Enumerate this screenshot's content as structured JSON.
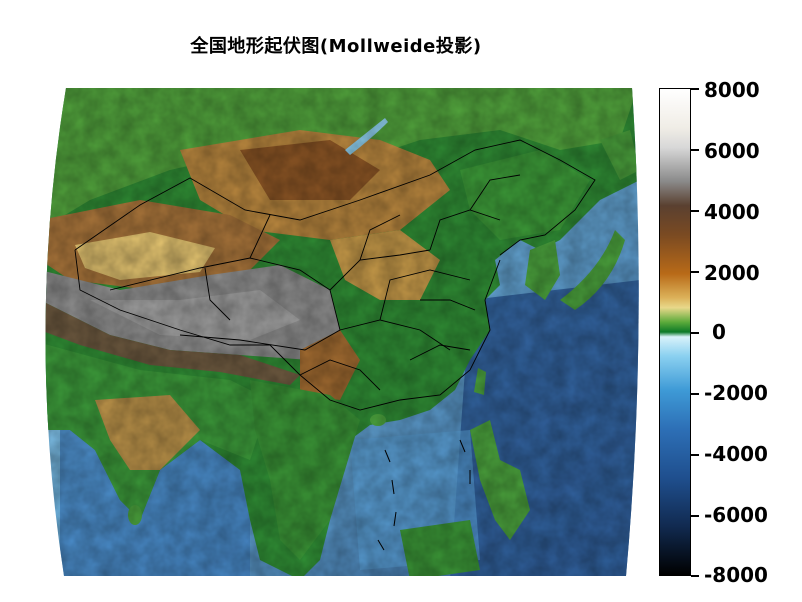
{
  "title": "全国地形起伏图(Mollweide投影)",
  "colorbar": {
    "ticks": [
      "8000",
      "6000",
      "4000",
      "2000",
      "0",
      "-2000",
      "-4000",
      "-6000",
      "-8000"
    ],
    "values": [
      8000,
      6000,
      4000,
      2000,
      0,
      -2000,
      -4000,
      -6000,
      -8000
    ],
    "range": [
      -8000,
      8000
    ]
  },
  "colors": {
    "ocean_shallow": "#c8ecf6",
    "ocean_mid": "#4a9ad4",
    "ocean_deep": "#1f3f72",
    "lowland": "#2a8a34",
    "upland": "#d8a84a",
    "mountain": "#8a5a2a",
    "plateau": "#8c8c8c",
    "boundary": "#000000"
  }
}
